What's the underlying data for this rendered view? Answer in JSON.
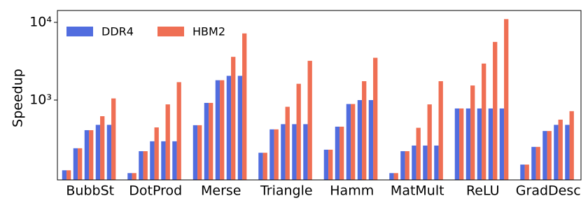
{
  "chart_data": {
    "type": "grouped-bar",
    "y_label": "Speedup",
    "log_scale": true,
    "categories": [
      "BubbSt",
      "DotProd",
      "Merse",
      "Triangle",
      "Hamm",
      "MatMult",
      "ReLU",
      "GradDesc"
    ],
    "series": [
      {
        "name": "DDR4",
        "color": "#516ddf",
        "values": [
          [
            125,
            240,
            410,
            480,
            480
          ],
          [
            115,
            220,
            295,
            295,
            295
          ],
          [
            475,
            920,
            1800,
            2050,
            2050
          ],
          [
            210,
            420,
            490,
            490,
            490
          ],
          [
            230,
            455,
            890,
            1000,
            1000
          ],
          [
            115,
            220,
            260,
            260,
            260
          ],
          [
            780,
            780,
            780,
            780,
            780
          ],
          [
            148,
            250,
            400,
            480,
            480
          ]
        ]
      },
      {
        "name": "HBM2",
        "color": "#ef6f54",
        "values": [
          [
            125,
            240,
            410,
            620,
            1050
          ],
          [
            115,
            220,
            445,
            880,
            1700
          ],
          [
            475,
            920,
            1800,
            3600,
            7200
          ],
          [
            210,
            420,
            820,
            1620,
            3200
          ],
          [
            230,
            455,
            890,
            1750,
            3500
          ],
          [
            115,
            220,
            440,
            880,
            1750
          ],
          [
            780,
            1540,
            2950,
            5600,
            11000
          ],
          [
            148,
            250,
            400,
            560,
            720
          ]
        ]
      }
    ],
    "ylim": [
      94,
      14200
    ],
    "yticks": [
      {
        "value": 1000,
        "label": "10³"
      },
      {
        "value": 10000,
        "label": "10⁴"
      }
    ],
    "legend": "upper-left"
  }
}
